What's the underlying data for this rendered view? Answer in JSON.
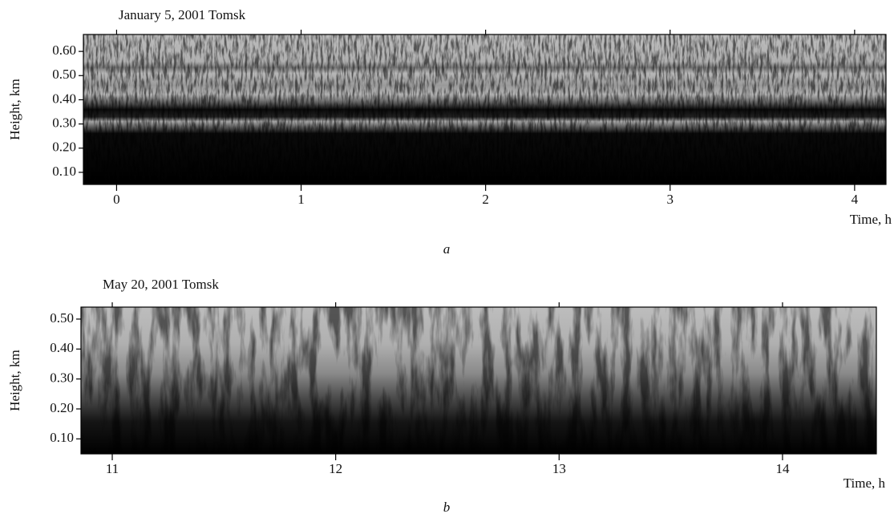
{
  "chart_data": [
    {
      "type": "echogram",
      "title": "January 5, 2001  Tomsk",
      "ylabel": "Height, km",
      "xlabel": "Time, h",
      "caption": "a",
      "xlim": [
        -0.18,
        4.17
      ],
      "xticks": [
        0,
        1,
        2,
        3,
        4
      ],
      "ylim": [
        0.05,
        0.67
      ],
      "yticks": [
        {
          "value": 0.1,
          "label": "0.10"
        },
        {
          "value": 0.2,
          "label": "0.20"
        },
        {
          "value": 0.3,
          "label": "0.30"
        },
        {
          "value": 0.4,
          "label": "0.40"
        },
        {
          "value": 0.5,
          "label": "0.50"
        },
        {
          "value": 0.6,
          "label": "0.60"
        }
      ]
    },
    {
      "type": "echogram",
      "title": "May 20, 2001  Tomsk",
      "ylabel": "Height, km",
      "xlabel": "Time, h",
      "caption": "b",
      "xlim": [
        10.86,
        14.42
      ],
      "xticks": [
        11,
        12,
        13,
        14
      ],
      "ylim": [
        0.05,
        0.54
      ],
      "yticks": [
        {
          "value": 0.1,
          "label": "0.10"
        },
        {
          "value": 0.2,
          "label": "0.20"
        },
        {
          "value": 0.3,
          "label": "0.30"
        },
        {
          "value": 0.4,
          "label": "0.40"
        },
        {
          "value": 0.5,
          "label": "0.50"
        }
      ]
    }
  ]
}
